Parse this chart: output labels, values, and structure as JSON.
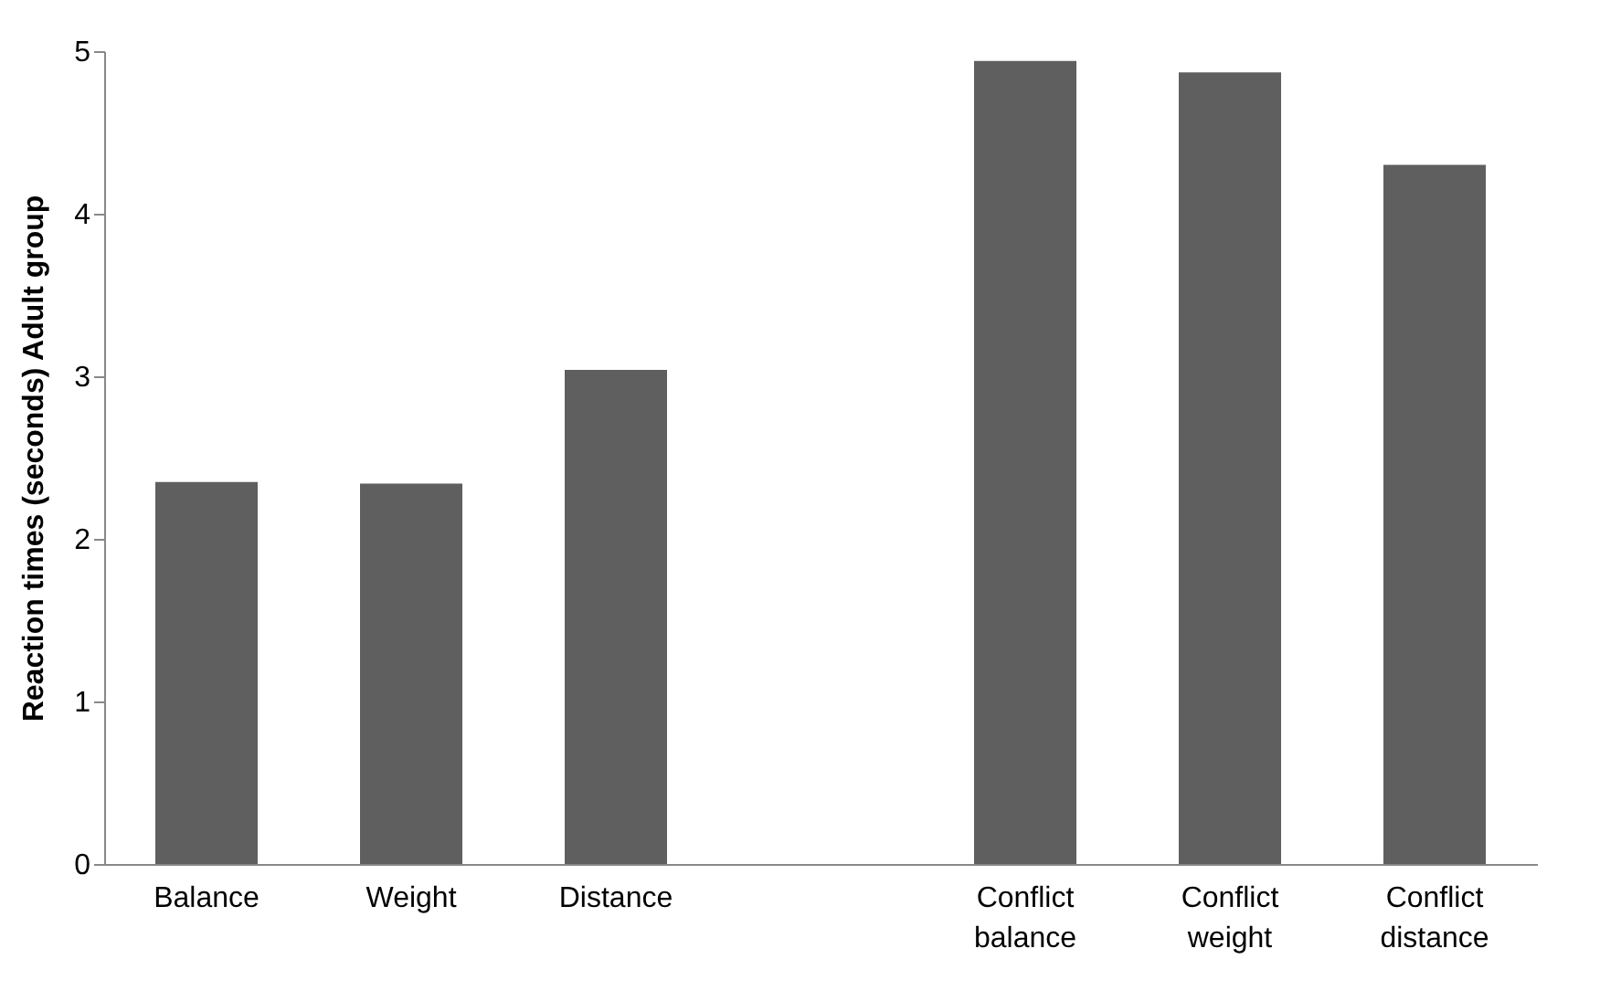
{
  "chart_data": {
    "type": "bar",
    "ylabel": "Reaction times (seconds) Adult group",
    "categories": [
      "Balance",
      "Weight",
      "Distance",
      null,
      "Conflict balance",
      "Conflict weight",
      "Conflict distance"
    ],
    "values": [
      2.35,
      2.34,
      3.04,
      null,
      4.94,
      4.87,
      4.3
    ],
    "color": "#5f5f5f",
    "ylim": [
      0,
      5
    ],
    "yticks": [
      0,
      1,
      2,
      3,
      4,
      5
    ],
    "grid": false
  }
}
